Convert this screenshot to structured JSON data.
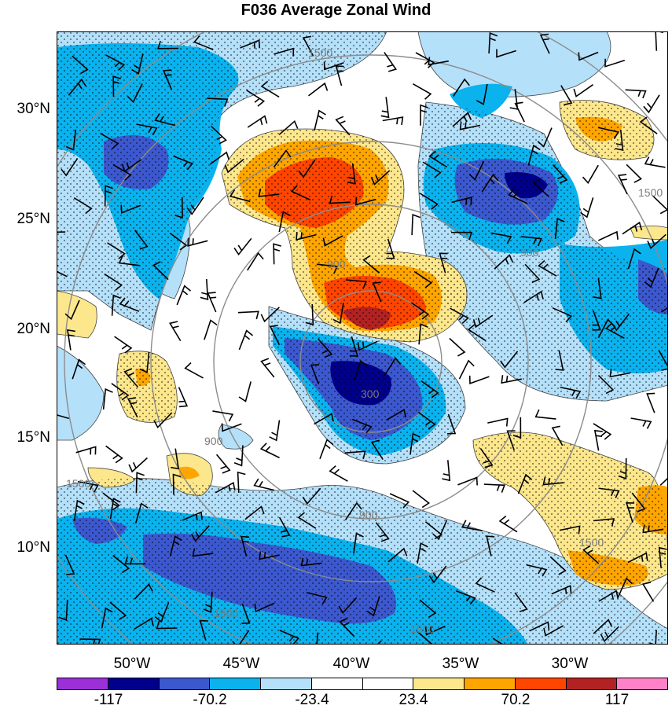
{
  "title": "F036 Average Zonal Wind",
  "lat_labels": [
    "30°N",
    "25°N",
    "20°N",
    "15°N",
    "10°N"
  ],
  "lon_labels": [
    "50°W",
    "45°W",
    "40°W",
    "35°W",
    "30°W"
  ],
  "colorbar": {
    "colors": [
      "#9b30d9",
      "#00008b",
      "#3c58cf",
      "#0ab2ee",
      "#b4e0fa",
      "#ffffff",
      "#ffffff",
      "#fde78c",
      "#ffa500",
      "#ff4500",
      "#b22222",
      "#ff82c8"
    ],
    "labels": [
      "-117",
      "-70.2",
      "-23.4",
      "23.4",
      "70.2",
      "117"
    ]
  },
  "contour_labels": {
    "c300": "300",
    "c900": "900",
    "c1500": "1500"
  }
}
